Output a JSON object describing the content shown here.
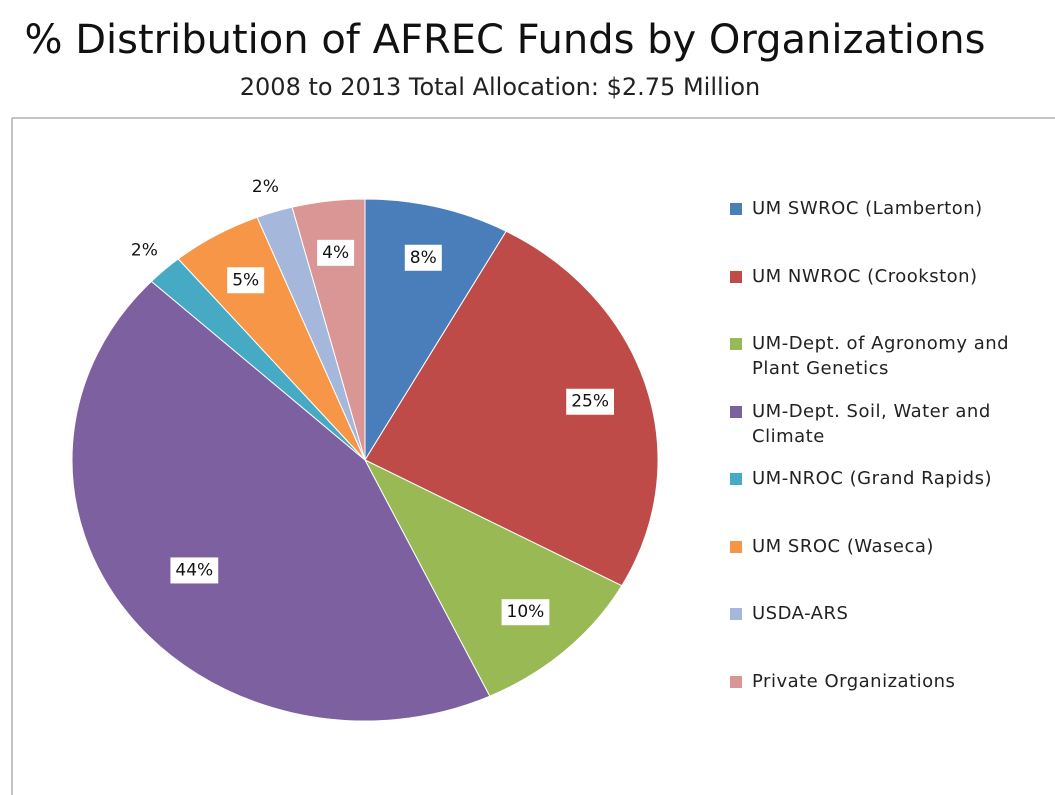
{
  "chart_data": {
    "type": "pie",
    "title": "% Distribution of AFREC Funds by Organizations",
    "subtitle": "2008 to 2013 Total Allocation: $2.75 Million",
    "categories": [
      "UM SWROC (Lamberton)",
      "UM NWROC (Crookston)",
      "UM-Dept. of Agronomy and Plant Genetics",
      "UM-Dept. Soil, Water and Climate",
      "UM-NROC (Grand Rapids)",
      "UM SROC (Waseca)",
      "USDA-ARS",
      "Private Organizations"
    ],
    "values": [
      8,
      25,
      10,
      44,
      2,
      5,
      2,
      4
    ],
    "value_labels": [
      "8%",
      "25%",
      "10%",
      "44%",
      "2%",
      "5%",
      "2%",
      "4%"
    ],
    "colors": [
      "#4a7ebb",
      "#be4b48",
      "#98b954",
      "#7d60a0",
      "#46aac5",
      "#f79646",
      "#a5b8dc",
      "#d99694"
    ],
    "legend": "right"
  }
}
